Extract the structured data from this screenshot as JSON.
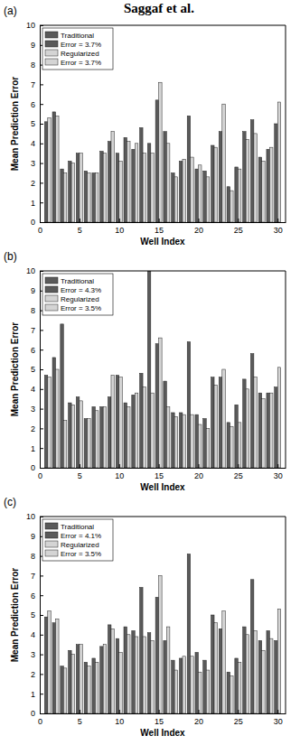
{
  "header": "Saggaf et al.",
  "chart_data": [
    {
      "type": "bar",
      "title": "(a)",
      "x_label": "Well Index",
      "y_label": "Mean Prediction Error",
      "x": [
        1,
        2,
        3,
        4,
        5,
        6,
        7,
        8,
        9,
        10,
        11,
        12,
        13,
        14,
        15,
        16,
        17,
        18,
        19,
        20,
        21,
        22,
        23,
        24,
        25,
        26,
        27,
        28,
        29,
        30
      ],
      "xlim": [
        0,
        31
      ],
      "xticks": [
        0,
        5,
        10,
        15,
        20,
        25,
        30
      ],
      "ylim": [
        0,
        10
      ],
      "yticks": [
        0,
        1,
        2,
        3,
        4,
        5,
        6,
        7,
        8,
        9,
        10
      ],
      "legend": "top-left",
      "annotations": [
        "Error = 3.7%",
        "Error = 3.7%"
      ],
      "series": [
        {
          "name": "Traditional",
          "color": "#5a5a5a",
          "values": [
            5.1,
            5.6,
            2.7,
            3.1,
            3.5,
            2.6,
            2.5,
            3.6,
            4.1,
            3.5,
            4.3,
            3.7,
            4.8,
            4.0,
            6.2,
            4.6,
            2.5,
            3.1,
            5.4,
            2.7,
            2.6,
            3.9,
            4.6,
            1.8,
            2.8,
            4.6,
            5.2,
            3.3,
            3.7,
            5.0
          ]
        },
        {
          "name": "Regularized",
          "color": "#d4d4d4",
          "values": [
            5.3,
            5.4,
            2.5,
            3.0,
            3.5,
            2.5,
            2.5,
            3.5,
            4.6,
            3.1,
            4.1,
            4.0,
            3.5,
            3.5,
            7.1,
            4.0,
            2.3,
            3.2,
            3.3,
            2.9,
            2.3,
            3.8,
            6.0,
            1.6,
            2.7,
            4.2,
            4.5,
            3.1,
            3.8,
            6.1
          ]
        }
      ]
    },
    {
      "type": "bar",
      "title": "(b)",
      "x_label": "Well Index",
      "y_label": "Mean Prediction Error",
      "x": [
        1,
        2,
        3,
        4,
        5,
        6,
        7,
        8,
        9,
        10,
        11,
        12,
        13,
        14,
        15,
        16,
        17,
        18,
        19,
        20,
        21,
        22,
        23,
        24,
        25,
        26,
        27,
        28,
        29,
        30
      ],
      "xlim": [
        0,
        31
      ],
      "xticks": [
        0,
        5,
        10,
        15,
        20,
        25,
        30
      ],
      "ylim": [
        0,
        10
      ],
      "yticks": [
        0,
        1,
        2,
        3,
        4,
        5,
        6,
        7,
        8,
        9,
        10
      ],
      "legend": "top-left",
      "annotations": [
        "Error = 4.3%",
        "Error = 3.5%"
      ],
      "series": [
        {
          "name": "Traditional",
          "color": "#5a5a5a",
          "values": [
            4.7,
            5.6,
            7.3,
            3.3,
            3.6,
            2.5,
            3.1,
            3.1,
            3.6,
            4.7,
            3.3,
            3.7,
            4.8,
            10.0,
            6.3,
            4.4,
            2.8,
            2.8,
            6.4,
            2.7,
            2.5,
            4.6,
            4.6,
            2.3,
            3.2,
            4.5,
            5.8,
            3.8,
            3.8,
            4.1
          ]
        },
        {
          "name": "Regularized",
          "color": "#d4d4d4",
          "values": [
            4.6,
            5.0,
            2.4,
            3.2,
            3.4,
            2.5,
            2.9,
            3.1,
            4.7,
            4.6,
            3.1,
            3.8,
            4.1,
            3.8,
            6.6,
            3.1,
            2.6,
            2.7,
            2.7,
            2.2,
            2.0,
            4.2,
            5.0,
            2.1,
            2.3,
            4.0,
            4.6,
            3.5,
            3.8,
            5.1
          ]
        }
      ]
    },
    {
      "type": "bar",
      "title": "(c)",
      "x_label": "Well Index",
      "y_label": "Mean Prediction Error",
      "x": [
        1,
        2,
        3,
        4,
        5,
        6,
        7,
        8,
        9,
        10,
        11,
        12,
        13,
        14,
        15,
        16,
        17,
        18,
        19,
        20,
        21,
        22,
        23,
        24,
        25,
        26,
        27,
        28,
        29,
        30
      ],
      "xlim": [
        0,
        31
      ],
      "xticks": [
        0,
        5,
        10,
        15,
        20,
        25,
        30
      ],
      "ylim": [
        0,
        10
      ],
      "yticks": [
        0,
        1,
        2,
        3,
        4,
        5,
        6,
        7,
        8,
        9,
        10
      ],
      "legend": "top-left",
      "annotations": [
        "Error = 4.1%",
        "Error = 3.5%"
      ],
      "series": [
        {
          "name": "Traditional",
          "color": "#5a5a5a",
          "values": [
            4.9,
            4.6,
            2.4,
            3.2,
            3.5,
            2.6,
            2.8,
            3.4,
            4.5,
            3.8,
            4.4,
            4.2,
            6.4,
            4.1,
            5.9,
            3.7,
            2.7,
            2.8,
            8.1,
            3.1,
            2.7,
            5.0,
            4.3,
            2.1,
            2.8,
            4.4,
            6.8,
            3.7,
            4.2,
            3.7
          ]
        },
        {
          "name": "Regularized",
          "color": "#d4d4d4",
          "values": [
            5.2,
            4.8,
            2.3,
            3.0,
            3.5,
            2.4,
            2.6,
            3.5,
            4.3,
            3.1,
            4.0,
            3.9,
            3.9,
            3.7,
            7.0,
            4.4,
            2.2,
            2.9,
            2.9,
            2.1,
            2.2,
            4.6,
            5.2,
            1.9,
            2.6,
            4.0,
            4.2,
            3.2,
            3.8,
            5.3
          ]
        }
      ]
    }
  ]
}
